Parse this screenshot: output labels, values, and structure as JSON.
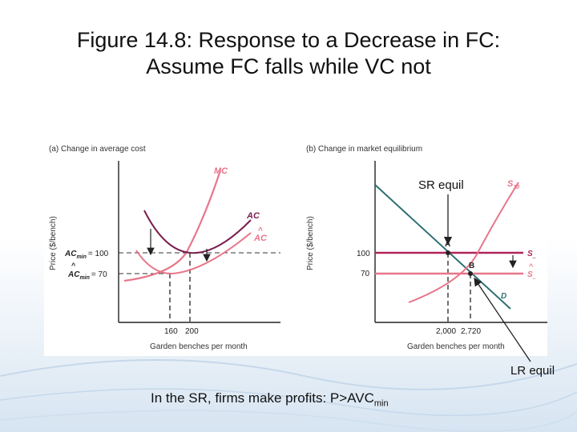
{
  "title": {
    "line1": "Figure 14.8: Response to a Decrease in FC:",
    "line2": "Assume FC falls while VC not"
  },
  "panel_a": {
    "heading": "(a) Change in average cost",
    "ylabel": "Price ($/bench)",
    "xlabel": "Garden benches per month",
    "curve_mc": "MC",
    "curve_ac": "AC",
    "curve_ac_hat": "AC",
    "tick_acmin_label": "AC",
    "tick_acmin_sub": "min",
    "tick_acmin_value": "= 100",
    "tick_acmin_hat_label": "AC",
    "tick_acmin_hat_sub": "min",
    "tick_acmin_hat_value": "= 70",
    "x_tick_1": "160",
    "x_tick_2": "200"
  },
  "panel_b": {
    "heading": "(b) Change in market equilibrium",
    "ylabel": "Price ($/bench)",
    "xlabel": "Garden benches per month",
    "curve_s10": "S",
    "curve_s10_sub": "10",
    "curve_s": "S",
    "curve_s_sub": "..",
    "curve_s_hat": "S",
    "curve_s_hat_sub": "..",
    "curve_d": "D",
    "point_a": "A",
    "point_b": "B",
    "y_tick_100": "100",
    "y_tick_70": "70",
    "x_tick_1": "2,000",
    "x_tick_2": "2,720"
  },
  "annotations": {
    "sr_equil": "SR equil",
    "lr_equil": "LR equil"
  },
  "caption": {
    "text": "In the SR, firms make profits: P>AVC",
    "sub": "min"
  },
  "colors": {
    "mc": "#e8768a",
    "ac": "#7a1f4e",
    "price_line": "#b0245a",
    "demand": "#2e6f74"
  }
}
